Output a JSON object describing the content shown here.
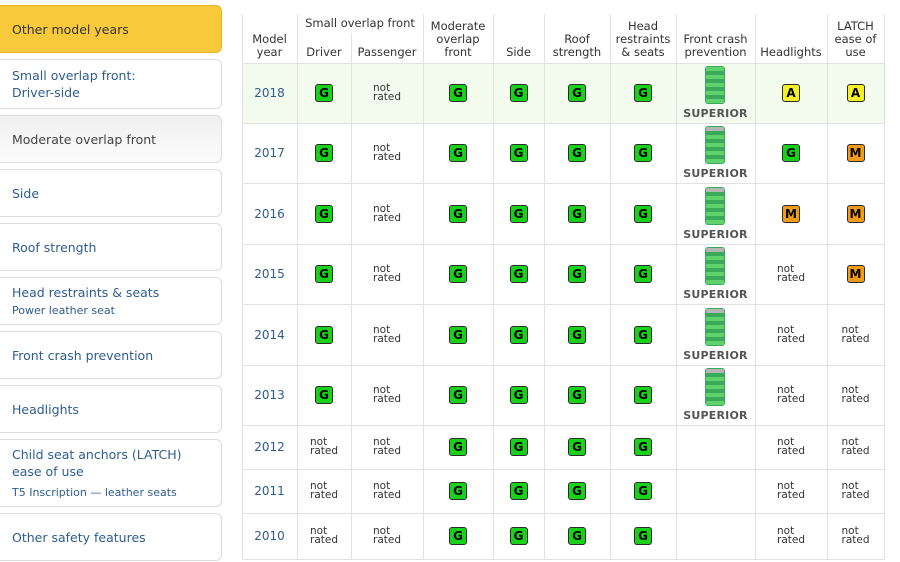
{
  "sidebar": {
    "items": [
      {
        "label": "Other model years",
        "sub": ""
      },
      {
        "label": "Small overlap front: Driver-side",
        "sub": ""
      },
      {
        "label": "Moderate overlap front",
        "sub": ""
      },
      {
        "label": "Side",
        "sub": ""
      },
      {
        "label": "Roof strength",
        "sub": ""
      },
      {
        "label": "Head restraints & seats",
        "sub": "Power leather seat"
      },
      {
        "label": "Front crash prevention",
        "sub": ""
      },
      {
        "label": "Headlights",
        "sub": ""
      },
      {
        "label": "Child seat anchors (LATCH) ease of use",
        "sub": "T5 Inscription — leather seats"
      },
      {
        "label": "Other safety features",
        "sub": ""
      }
    ]
  },
  "table": {
    "headers": {
      "model_year": "Model year",
      "small_overlap": "Small overlap front",
      "driver": "Driver",
      "passenger": "Passenger",
      "moderate": "Moderate overlap front",
      "side": "Side",
      "roof": "Roof strength",
      "head": "Head restraints & seats",
      "fcp": "Front crash prevention",
      "headlights": "Headlights",
      "latch": "LATCH ease of use"
    },
    "not_rated_line1": "not",
    "not_rated_line2": "rated",
    "superior_label": "SUPERIOR",
    "rows": [
      {
        "year": "2018",
        "driver": "G",
        "passenger": "NR",
        "moderate": "G",
        "side": "G",
        "roof": "G",
        "head": "G",
        "fcp": "SUPERIOR",
        "headlights": "A",
        "latch": "A"
      },
      {
        "year": "2017",
        "driver": "G",
        "passenger": "NR",
        "moderate": "G",
        "side": "G",
        "roof": "G",
        "head": "G",
        "fcp": "SUPERIOR",
        "headlights": "G",
        "latch": "M"
      },
      {
        "year": "2016",
        "driver": "G",
        "passenger": "NR",
        "moderate": "G",
        "side": "G",
        "roof": "G",
        "head": "G",
        "fcp": "SUPERIOR",
        "headlights": "M",
        "latch": "M"
      },
      {
        "year": "2015",
        "driver": "G",
        "passenger": "NR",
        "moderate": "G",
        "side": "G",
        "roof": "G",
        "head": "G",
        "fcp": "SUPERIOR",
        "headlights": "NR",
        "latch": "M"
      },
      {
        "year": "2014",
        "driver": "G",
        "passenger": "NR",
        "moderate": "G",
        "side": "G",
        "roof": "G",
        "head": "G",
        "fcp": "SUPERIOR",
        "headlights": "NR",
        "latch": "NR"
      },
      {
        "year": "2013",
        "driver": "G",
        "passenger": "NR",
        "moderate": "G",
        "side": "G",
        "roof": "G",
        "head": "G",
        "fcp": "SUPERIOR",
        "headlights": "NR",
        "latch": "NR"
      },
      {
        "year": "2012",
        "driver": "NR",
        "passenger": "NR",
        "moderate": "G",
        "side": "G",
        "roof": "G",
        "head": "G",
        "fcp": "",
        "headlights": "NR",
        "latch": "NR"
      },
      {
        "year": "2011",
        "driver": "NR",
        "passenger": "NR",
        "moderate": "G",
        "side": "G",
        "roof": "G",
        "head": "G",
        "fcp": "",
        "headlights": "NR",
        "latch": "NR"
      },
      {
        "year": "2010",
        "driver": "NR",
        "passenger": "NR",
        "moderate": "G",
        "side": "G",
        "roof": "G",
        "head": "G",
        "fcp": "",
        "headlights": "NR",
        "latch": "NR"
      }
    ]
  },
  "colors": {
    "good": "#19d11b",
    "acceptable": "#f3f02a",
    "marginal": "#f29b1a",
    "active_tab": "#f8c93a",
    "link": "#2f5c8f"
  },
  "icons": {
    "fcp_rating": "front-crash-prevention-bars-icon"
  }
}
